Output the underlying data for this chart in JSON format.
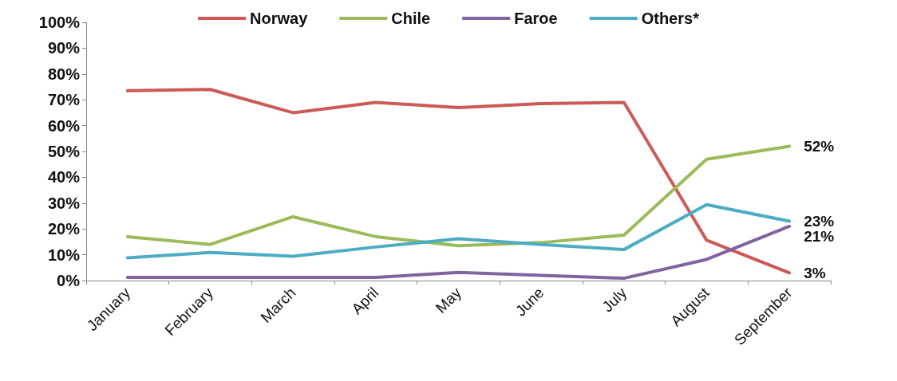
{
  "chart_data": {
    "type": "line",
    "categories": [
      "January",
      "February",
      "March",
      "April",
      "May",
      "June",
      "July",
      "August",
      "September"
    ],
    "series": [
      {
        "name": "Norway",
        "color": "#cc5b57",
        "values": [
          73.5,
          74,
          65,
          69,
          67,
          68.5,
          69,
          15.6,
          3
        ],
        "value_labels": [
          null,
          null,
          null,
          null,
          null,
          null,
          null,
          null,
          "3%"
        ]
      },
      {
        "name": "Chile",
        "color": "#9bbb59",
        "values": [
          17,
          14,
          24.7,
          17,
          13.5,
          14.7,
          17.6,
          47,
          52
        ],
        "value_labels": [
          null,
          null,
          null,
          null,
          null,
          null,
          null,
          null,
          "52%"
        ]
      },
      {
        "name": "Faroe",
        "color": "#8064a2",
        "values": [
          1.2,
          1.2,
          1.2,
          1.2,
          3.2,
          2,
          0.9,
          8.2,
          21
        ],
        "value_labels": [
          null,
          null,
          null,
          null,
          null,
          null,
          null,
          null,
          "21%"
        ]
      },
      {
        "name": "Others*",
        "color": "#4bacc6",
        "values": [
          8.8,
          10.9,
          9.4,
          13,
          16.2,
          14,
          12,
          29.4,
          23
        ],
        "value_labels": [
          null,
          null,
          null,
          null,
          null,
          null,
          null,
          null,
          "23%"
        ]
      }
    ],
    "ylim": [
      0,
      100
    ],
    "yticks": [
      {
        "value": 0,
        "label": "0%"
      },
      {
        "value": 10,
        "label": "10%"
      },
      {
        "value": 20,
        "label": "20%"
      },
      {
        "value": 30,
        "label": "30%"
      },
      {
        "value": 40,
        "label": "40%"
      },
      {
        "value": 50,
        "label": "50%"
      },
      {
        "value": 60,
        "label": "60%"
      },
      {
        "value": 70,
        "label": "70%"
      },
      {
        "value": 80,
        "label": "80%"
      },
      {
        "value": 90,
        "label": "90%"
      },
      {
        "value": 100,
        "label": "100%"
      }
    ],
    "grid": false,
    "legend": "top",
    "marker": "none",
    "line_style": "solid"
  }
}
